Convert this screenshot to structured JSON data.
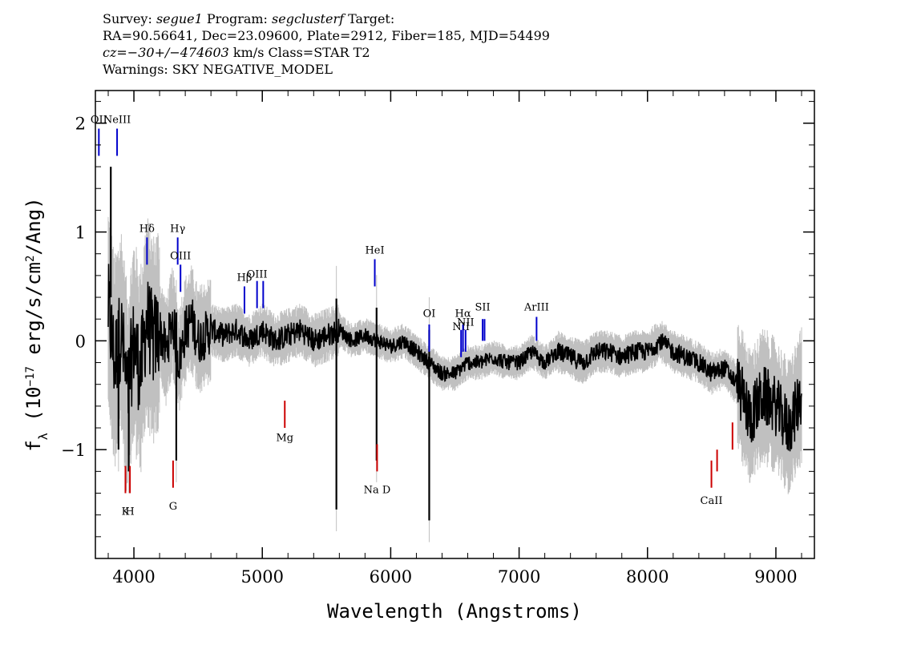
{
  "header": {
    "line1_prefix": "Survey: ",
    "survey": "segue1",
    "line1_mid": " Program: ",
    "program": "segclusterf",
    "line1_suffix": " Target:",
    "line2": "RA=90.56641, Dec=23.09600, Plate=2912, Fiber=185, MJD=54499",
    "cz": "cz=−30+/−474603",
    "line3_suffix": " km/s Class=STAR T2",
    "line4": "Warnings: SKY NEGATIVE_MODEL"
  },
  "chart_data": {
    "type": "line",
    "xlabel": "Wavelength (Angstroms)",
    "ylabel": "f_λ (10^-17 erg/s/cm^2/Ang)",
    "xlim": [
      3700,
      9300
    ],
    "ylim": [
      -2.0,
      2.3
    ],
    "x_ticks": [
      4000,
      5000,
      6000,
      7000,
      8000,
      9000
    ],
    "y_ticks": [
      -1,
      0,
      1,
      2
    ],
    "colors": {
      "flux": "#000000",
      "error": "#c0c0c0",
      "emission": "#0000cc",
      "absorption": "#cc0000"
    },
    "series": [
      {
        "role": "flux",
        "x": [
          3800,
          3850,
          3900,
          3950,
          4000,
          4050,
          4100,
          4150,
          4200,
          4250,
          4300,
          4350,
          4400,
          4450,
          4500,
          4600,
          4700,
          4800,
          4900,
          5000,
          5100,
          5200,
          5300,
          5400,
          5500,
          5600,
          5700,
          5800,
          5900,
          6000,
          6100,
          6200,
          6300,
          6400,
          6500,
          6600,
          6700,
          6800,
          6900,
          7000,
          7100,
          7200,
          7300,
          7400,
          7500,
          7600,
          7700,
          7800,
          7900,
          8000,
          8100,
          8200,
          8300,
          8400,
          8500,
          8600,
          8700,
          8800,
          8900,
          9000,
          9100,
          9200
        ],
        "y": [
          0.3,
          -0.2,
          0.1,
          -0.5,
          0.0,
          -0.3,
          0.2,
          0.0,
          0.1,
          -0.1,
          0.2,
          -0.2,
          0.1,
          0.2,
          0.0,
          0.1,
          0.05,
          0.1,
          0.0,
          0.1,
          0.0,
          0.05,
          0.1,
          0.0,
          0.05,
          0.1,
          0.0,
          0.05,
          0.0,
          -0.05,
          0.0,
          -0.1,
          -0.2,
          -0.3,
          -0.3,
          -0.2,
          -0.2,
          -0.15,
          -0.2,
          -0.2,
          -0.1,
          -0.2,
          -0.1,
          -0.15,
          -0.2,
          -0.1,
          -0.1,
          -0.15,
          -0.1,
          -0.1,
          0.0,
          -0.1,
          -0.15,
          -0.2,
          -0.3,
          -0.25,
          -0.4,
          -0.7,
          -0.5,
          -0.6,
          -0.8,
          -0.5
        ]
      },
      {
        "role": "spikes",
        "x": [
          3820,
          3880,
          3960,
          4330,
          5577,
          5890,
          6300
        ],
        "y": [
          1.6,
          -1.0,
          -1.2,
          -1.1,
          -1.55,
          -1.1,
          -1.65
        ]
      }
    ],
    "emission_lines": [
      {
        "label": "OII",
        "x": 3727,
        "label_y": 2.0,
        "y0": 1.7,
        "y1": 1.95
      },
      {
        "label": "NeIII",
        "x": 3869,
        "label_y": 2.0,
        "y0": 1.7,
        "y1": 1.95
      },
      {
        "label": "Hδ",
        "x": 4102,
        "label_y": 1.0,
        "y0": 0.7,
        "y1": 0.95
      },
      {
        "label": "Hγ",
        "x": 4341,
        "label_y": 1.0,
        "y0": 0.7,
        "y1": 0.95
      },
      {
        "label": "OIII",
        "x": 4363,
        "label_y": 0.75,
        "y0": 0.45,
        "y1": 0.7
      },
      {
        "label": "Hβ",
        "x": 4861,
        "label_y": 0.55,
        "y0": 0.25,
        "y1": 0.5
      },
      {
        "label": "OIII",
        "x": 4959,
        "label_y": 0.58,
        "y0": 0.3,
        "y1": 0.55
      },
      {
        "label": "",
        "x": 5007,
        "label_y": 0.58,
        "y0": 0.3,
        "y1": 0.55
      },
      {
        "label": "HeI",
        "x": 5876,
        "label_y": 0.8,
        "y0": 0.5,
        "y1": 0.75
      },
      {
        "label": "OI",
        "x": 6300,
        "label_y": 0.22,
        "y0": -0.1,
        "y1": 0.15
      },
      {
        "label": "NII",
        "x": 6548,
        "label_y": 0.1,
        "y0": -0.15,
        "y1": 0.1
      },
      {
        "label": "Hα",
        "x": 6563,
        "label_y": 0.22,
        "y0": -0.1,
        "y1": 0.15
      },
      {
        "label": "NII",
        "x": 6583,
        "label_y": 0.14,
        "y0": -0.1,
        "y1": 0.1
      },
      {
        "label": "SII",
        "x": 6716,
        "label_y": 0.28,
        "y0": 0.0,
        "y1": 0.2
      },
      {
        "label": "",
        "x": 6731,
        "label_y": 0.28,
        "y0": 0.0,
        "y1": 0.2
      },
      {
        "label": "ArIII",
        "x": 7136,
        "label_y": 0.28,
        "y0": 0.0,
        "y1": 0.22
      }
    ],
    "absorption_lines": [
      {
        "label": "K",
        "x": 3934,
        "label_y": -1.6,
        "y0": -1.4,
        "y1": -1.15
      },
      {
        "label": "H",
        "x": 3969,
        "label_y": -1.6,
        "y0": -1.4,
        "y1": -1.15
      },
      {
        "label": "G",
        "x": 4305,
        "label_y": -1.55,
        "y0": -1.35,
        "y1": -1.1
      },
      {
        "label": "Mg",
        "x": 5175,
        "label_y": -0.92,
        "y0": -0.8,
        "y1": -0.55
      },
      {
        "label": "Na D",
        "x": 5894,
        "label_y": -1.4,
        "y0": -1.2,
        "y1": -0.95
      },
      {
        "label": "CaII",
        "x": 8498,
        "label_y": -1.5,
        "y0": -1.35,
        "y1": -1.1
      },
      {
        "label": "",
        "x": 8542,
        "label_y": -1.5,
        "y0": -1.2,
        "y1": -1.0
      },
      {
        "label": "",
        "x": 8662,
        "label_y": -1.5,
        "y0": -1.0,
        "y1": -0.75
      }
    ]
  }
}
